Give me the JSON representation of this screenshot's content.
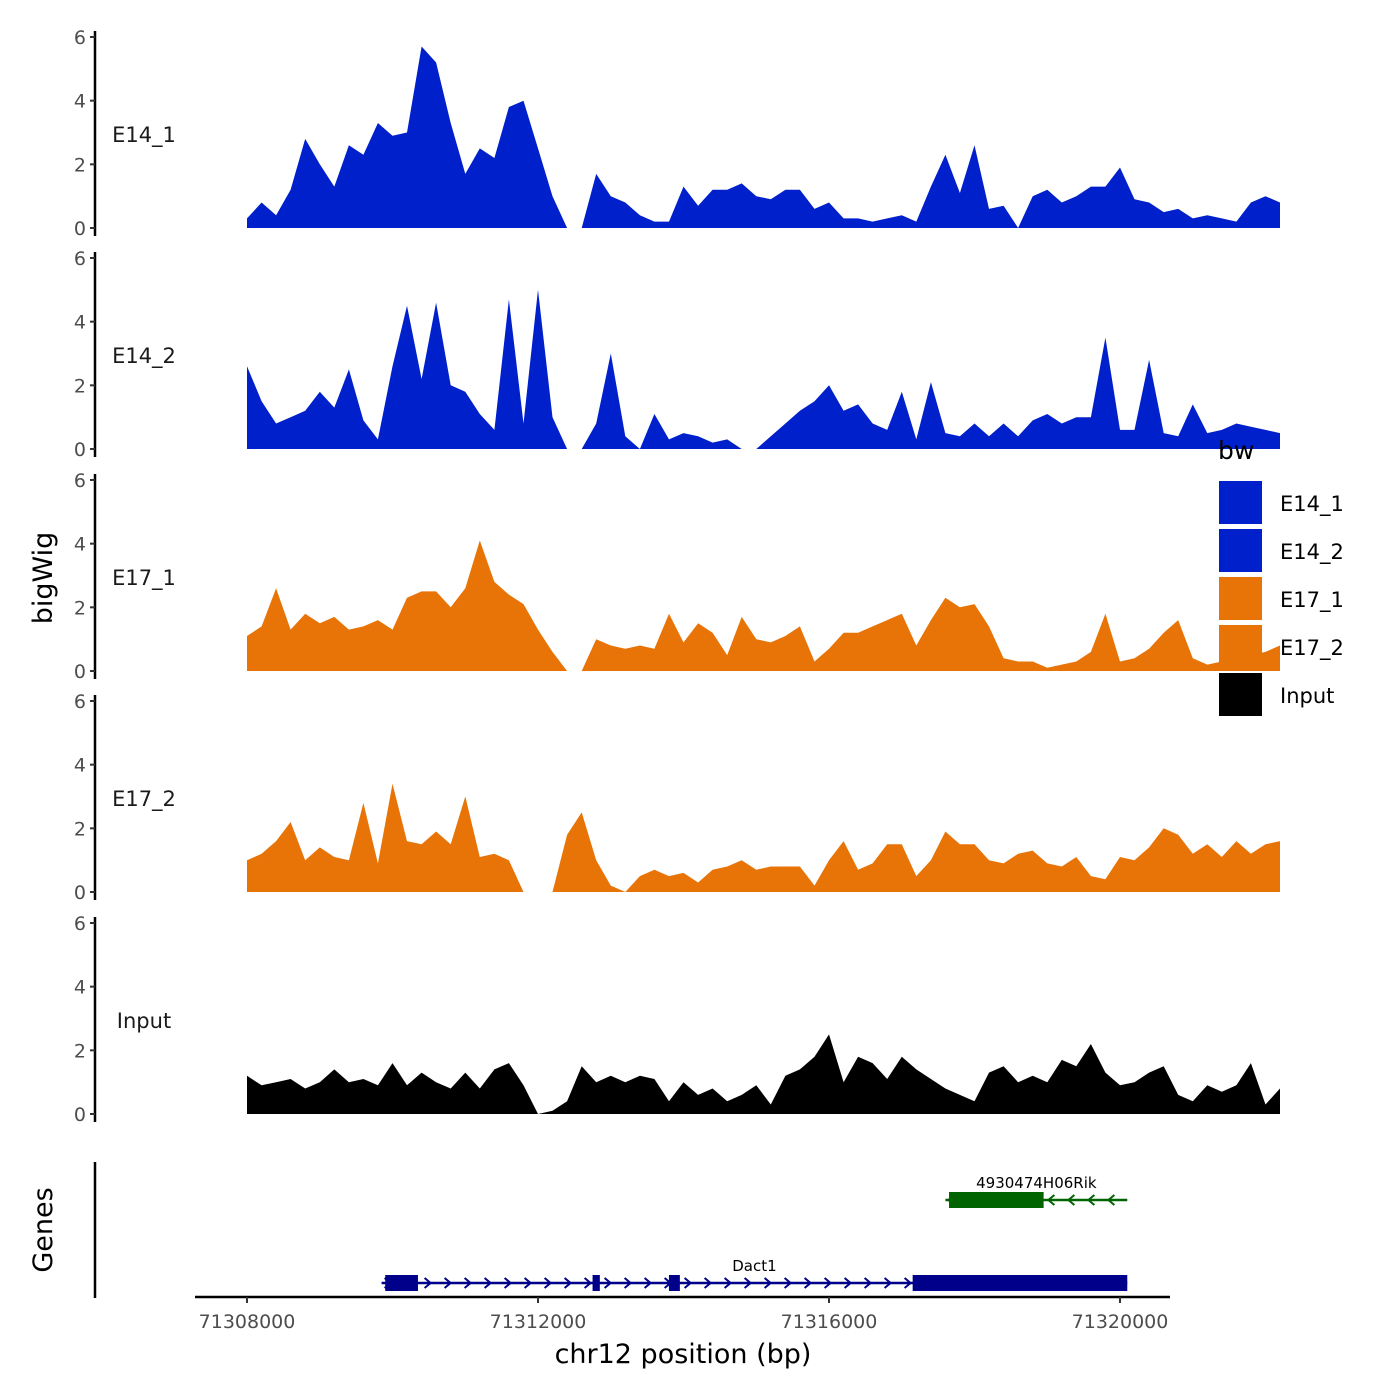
{
  "chart_data": {
    "type": "area",
    "title": "",
    "ylabel": "bigWig",
    "genes_label": "Genes",
    "xlabel": "chr12 position (bp)",
    "xlim": [
      71308000,
      71320000
    ],
    "ylim": [
      0,
      6
    ],
    "x_ticks": [
      71308000,
      71312000,
      71316000,
      71320000
    ],
    "x_tick_labels": [
      "71308000",
      "71312000",
      "71316000",
      "71320000"
    ],
    "y_ticks": [
      0,
      2,
      4,
      6
    ],
    "y_tick_labels": [
      "0",
      "2",
      "4",
      "6"
    ],
    "legend": {
      "title": "bw",
      "position": "right",
      "entries": [
        {
          "label": "E14_1",
          "color": "#0020CC"
        },
        {
          "label": "E14_2",
          "color": "#0020CC"
        },
        {
          "label": "E17_1",
          "color": "#E87407"
        },
        {
          "label": "E17_2",
          "color": "#E87407"
        },
        {
          "label": "Input",
          "color": "#000000"
        }
      ]
    },
    "series": [
      {
        "name": "E14_1",
        "color": "#0020CC",
        "x_start": 71308000,
        "x_step": 200,
        "values": [
          0.3,
          0.8,
          0.4,
          1.2,
          2.8,
          2.0,
          1.3,
          2.6,
          2.3,
          3.3,
          2.9,
          3.0,
          5.7,
          5.2,
          3.3,
          1.7,
          2.5,
          2.2,
          3.8,
          4.0,
          2.5,
          1.0,
          0.0,
          0.0,
          1.7,
          1.0,
          0.8,
          0.4,
          0.2,
          0.2,
          1.3,
          0.7,
          1.2,
          1.2,
          1.4,
          1.0,
          0.9,
          1.2,
          1.2,
          0.6,
          0.8,
          0.3,
          0.3,
          0.2,
          0.3,
          0.4,
          0.2,
          1.3,
          2.3,
          1.1,
          2.6,
          0.6,
          0.7,
          0.0,
          1.0,
          1.2,
          0.8,
          1.0,
          1.3,
          1.3,
          1.9,
          0.9,
          0.8,
          0.5,
          0.6,
          0.3,
          0.4,
          0.3,
          0.2,
          0.8,
          1.0,
          0.8
        ]
      },
      {
        "name": "E14_2",
        "color": "#0020CC",
        "x_start": 71308000,
        "x_step": 200,
        "values": [
          2.6,
          1.5,
          0.8,
          1.0,
          1.2,
          1.8,
          1.3,
          2.5,
          0.9,
          0.3,
          2.6,
          4.5,
          2.2,
          4.6,
          2.0,
          1.8,
          1.1,
          0.6,
          4.7,
          0.8,
          5.0,
          1.0,
          0.0,
          0.0,
          0.8,
          3.0,
          0.4,
          0.0,
          1.1,
          0.3,
          0.5,
          0.4,
          0.2,
          0.3,
          0.0,
          0.0,
          0.4,
          0.8,
          1.2,
          1.5,
          2.0,
          1.2,
          1.4,
          0.8,
          0.6,
          1.8,
          0.3,
          2.1,
          0.5,
          0.4,
          0.8,
          0.4,
          0.8,
          0.4,
          0.9,
          1.1,
          0.8,
          1.0,
          1.0,
          3.5,
          0.6,
          0.6,
          2.8,
          0.5,
          0.4,
          1.4,
          0.5,
          0.6,
          0.8,
          0.7,
          0.6,
          0.5
        ]
      },
      {
        "name": "E17_1",
        "color": "#E87407",
        "x_start": 71308000,
        "x_step": 200,
        "values": [
          1.1,
          1.4,
          2.6,
          1.3,
          1.8,
          1.5,
          1.7,
          1.3,
          1.4,
          1.6,
          1.3,
          2.3,
          2.5,
          2.5,
          2.0,
          2.6,
          4.1,
          2.8,
          2.4,
          2.1,
          1.3,
          0.6,
          0.0,
          0.0,
          1.0,
          0.8,
          0.7,
          0.8,
          0.7,
          1.8,
          0.9,
          1.5,
          1.2,
          0.5,
          1.7,
          1.0,
          0.9,
          1.1,
          1.4,
          0.3,
          0.7,
          1.2,
          1.2,
          1.4,
          1.6,
          1.8,
          0.8,
          1.6,
          2.3,
          2.0,
          2.1,
          1.4,
          0.4,
          0.3,
          0.3,
          0.1,
          0.2,
          0.3,
          0.6,
          1.8,
          0.3,
          0.4,
          0.7,
          1.2,
          1.6,
          0.4,
          0.2,
          0.3,
          0.4,
          0.5,
          0.6,
          0.8
        ]
      },
      {
        "name": "E17_2",
        "color": "#E87407",
        "x_start": 71308000,
        "x_step": 200,
        "values": [
          1.0,
          1.2,
          1.6,
          2.2,
          1.0,
          1.4,
          1.1,
          1.0,
          2.8,
          0.9,
          3.4,
          1.6,
          1.5,
          1.9,
          1.5,
          3.0,
          1.1,
          1.2,
          1.0,
          0.0,
          0.0,
          0.0,
          1.8,
          2.5,
          1.0,
          0.2,
          0.0,
          0.5,
          0.7,
          0.5,
          0.6,
          0.3,
          0.7,
          0.8,
          1.0,
          0.7,
          0.8,
          0.8,
          0.8,
          0.2,
          1.0,
          1.6,
          0.7,
          0.9,
          1.5,
          1.5,
          0.5,
          1.0,
          1.9,
          1.5,
          1.5,
          1.0,
          0.9,
          1.2,
          1.3,
          0.9,
          0.8,
          1.1,
          0.5,
          0.4,
          1.1,
          1.0,
          1.4,
          2.0,
          1.8,
          1.2,
          1.5,
          1.1,
          1.6,
          1.2,
          1.5,
          1.6
        ]
      },
      {
        "name": "Input",
        "color": "#000000",
        "x_start": 71308000,
        "x_step": 200,
        "values": [
          1.2,
          0.9,
          1.0,
          1.1,
          0.8,
          1.0,
          1.4,
          1.0,
          1.1,
          0.9,
          1.6,
          0.9,
          1.3,
          1.0,
          0.8,
          1.3,
          0.8,
          1.4,
          1.6,
          0.9,
          0.0,
          0.1,
          0.4,
          1.5,
          1.0,
          1.2,
          1.0,
          1.2,
          1.1,
          0.4,
          1.0,
          0.6,
          0.8,
          0.4,
          0.6,
          0.9,
          0.3,
          1.2,
          1.4,
          1.8,
          2.5,
          1.0,
          1.8,
          1.6,
          1.1,
          1.8,
          1.4,
          1.1,
          0.8,
          0.6,
          0.4,
          1.3,
          1.5,
          1.0,
          1.2,
          1.0,
          1.7,
          1.5,
          2.2,
          1.3,
          0.9,
          1.0,
          1.3,
          1.5,
          0.6,
          0.4,
          0.9,
          0.7,
          0.9,
          1.6,
          0.3,
          0.8
        ]
      }
    ],
    "genes": [
      {
        "name": "4930474H06Rik",
        "color": "#006400",
        "strand": "-",
        "start": 71317600,
        "end": 71320100,
        "exons": [
          {
            "start": 71317650,
            "end": 71318950,
            "thick": true
          }
        ]
      },
      {
        "name": "Dact1",
        "color": "#00008B",
        "strand": "+",
        "start": 71309850,
        "end": 71320100,
        "exons": [
          {
            "start": 71309900,
            "end": 71310350,
            "thick": true
          },
          {
            "start": 71312750,
            "end": 71312850,
            "thick": true
          },
          {
            "start": 71313800,
            "end": 71313950,
            "thick": true
          },
          {
            "start": 71317150,
            "end": 71320100,
            "thick": true
          }
        ]
      }
    ]
  }
}
